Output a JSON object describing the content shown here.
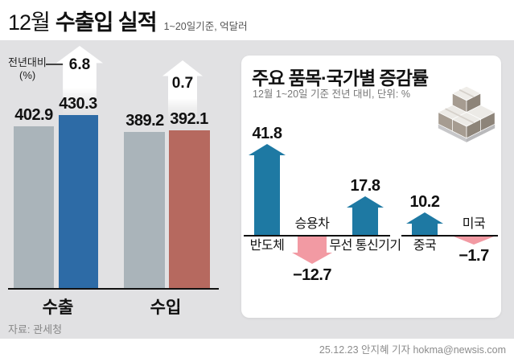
{
  "header": {
    "title_prefix": "12월",
    "title_main": "수출입 실적",
    "title_note": "1~20일기준, 억달러"
  },
  "footer": {
    "source": "자료: 관세청",
    "credit": "25.12.23 안지혜 기자 hokma@newsis.com"
  },
  "colors": {
    "background": "#e1e1e3",
    "panel": "#ffffff",
    "bar_previous_year": "#aab4ba",
    "bar_export": "#2d6ba6",
    "bar_import": "#b6695f",
    "arrow_up": "#1e79a3",
    "arrow_down": "#f29aa3",
    "axis": "#111111"
  },
  "chart_data": [
    {
      "type": "bar",
      "title": "12월 수출입 실적",
      "subtitle": "1~20일기준, 억달러",
      "unit": "억달러",
      "ylim": [
        0,
        450
      ],
      "grid": false,
      "yoy_label": "전년대비",
      "yoy_unit": "(%)",
      "categories": [
        "수출",
        "수입"
      ],
      "groups": [
        {
          "category": "수출",
          "values": [
            402.9,
            430.3
          ],
          "labels": [
            "402.9",
            "430.3"
          ],
          "yoy_change_pct": 6.8,
          "yoy_display": "6.8"
        },
        {
          "category": "수입",
          "values": [
            389.2,
            392.1
          ],
          "labels": [
            "389.2",
            "392.1"
          ],
          "yoy_change_pct": 0.7,
          "yoy_display": "0.7"
        }
      ]
    },
    {
      "type": "bar",
      "title": "주요 품목·국가별 증감률",
      "subtitle": "12월 1~20일 기준 전년 대비, 단위: %",
      "unit": "%",
      "items": [
        {
          "label": "반도체",
          "value": 41.8,
          "display": "41.8",
          "direction": "up"
        },
        {
          "label": "승용차",
          "value": -12.7,
          "display": "−12.7",
          "direction": "down"
        },
        {
          "label": "무선 통신기기",
          "value": 17.8,
          "display": "17.8",
          "direction": "up"
        },
        {
          "label": "중국",
          "value": 10.2,
          "display": "10.2",
          "direction": "up"
        },
        {
          "label": "미국",
          "value": -1.7,
          "display": "−1.7",
          "direction": "down"
        }
      ]
    }
  ]
}
